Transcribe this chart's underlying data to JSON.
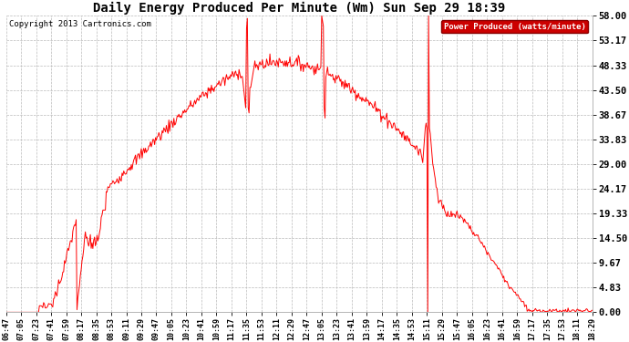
{
  "title": "Daily Energy Produced Per Minute (Wm) Sun Sep 29 18:39",
  "copyright": "Copyright 2013 Cartronics.com",
  "legend_label": "Power Produced (watts/minute)",
  "legend_bg": "#cc0000",
  "line_color": "#ff0000",
  "bg_color": "#ffffff",
  "grid_color": "#bbbbbb",
  "y_ticks": [
    0.0,
    4.83,
    9.67,
    14.5,
    19.33,
    24.17,
    29.0,
    33.83,
    38.67,
    43.5,
    48.33,
    53.17,
    58.0
  ],
  "ymax": 58.0,
  "ymin": 0.0,
  "x_tick_labels": [
    "06:47",
    "07:05",
    "07:23",
    "07:41",
    "07:59",
    "08:17",
    "08:35",
    "08:53",
    "09:11",
    "09:29",
    "09:47",
    "10:05",
    "10:23",
    "10:41",
    "10:59",
    "11:17",
    "11:35",
    "11:53",
    "12:11",
    "12:29",
    "12:47",
    "13:05",
    "13:23",
    "13:41",
    "13:59",
    "14:17",
    "14:35",
    "14:53",
    "15:11",
    "15:29",
    "15:47",
    "16:05",
    "16:23",
    "16:41",
    "16:59",
    "17:17",
    "17:35",
    "17:53",
    "18:11",
    "18:29"
  ]
}
